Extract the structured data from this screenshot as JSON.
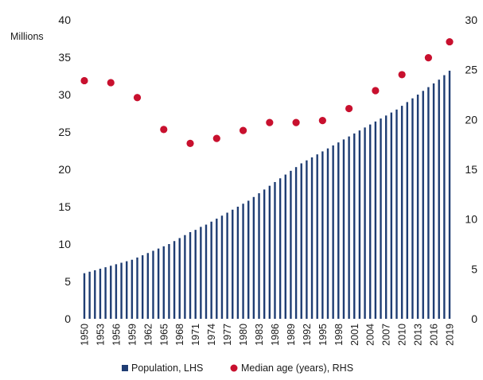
{
  "chart_data": {
    "type": "bar",
    "left_unit_label": "Millions",
    "x_start": 1950,
    "x_end": 2019,
    "x_tick_labels": [
      "1950",
      "1953",
      "1956",
      "1959",
      "1962",
      "1965",
      "1968",
      "1971",
      "1974",
      "1977",
      "1980",
      "1983",
      "1986",
      "1989",
      "1992",
      "1995",
      "1998",
      "2001",
      "2004",
      "2007",
      "2010",
      "2013",
      "2016",
      "2019"
    ],
    "left_axis": {
      "ylim": [
        0,
        40
      ],
      "ticks": [
        0,
        5,
        10,
        15,
        20,
        25,
        30,
        35,
        40
      ]
    },
    "right_axis": {
      "ylim": [
        0,
        30
      ],
      "ticks": [
        0,
        5,
        10,
        15,
        20,
        25,
        30
      ]
    },
    "series": [
      {
        "name": "Population, LHS",
        "type": "bar",
        "axis": "left",
        "color": "#1f3d73",
        "values": [
          6.1,
          6.3,
          6.5,
          6.7,
          6.9,
          7.1,
          7.3,
          7.5,
          7.7,
          7.9,
          8.2,
          8.5,
          8.8,
          9.1,
          9.4,
          9.7,
          10.0,
          10.4,
          10.8,
          11.2,
          11.6,
          11.9,
          12.3,
          12.6,
          13.0,
          13.4,
          13.8,
          14.2,
          14.6,
          15.0,
          15.4,
          15.8,
          16.3,
          16.8,
          17.3,
          17.8,
          18.3,
          18.8,
          19.3,
          19.8,
          20.3,
          20.8,
          21.2,
          21.6,
          22.0,
          22.4,
          22.8,
          23.2,
          23.6,
          24.0,
          24.4,
          24.8,
          25.2,
          25.6,
          26.0,
          26.4,
          26.8,
          27.2,
          27.6,
          28.0,
          28.5,
          29.0,
          29.5,
          30.0,
          30.5,
          31.0,
          31.5,
          32.0,
          32.6,
          33.2
        ]
      },
      {
        "name": "Median age (years), RHS",
        "type": "scatter",
        "axis": "right",
        "color": "#c8102e",
        "x": [
          1950,
          1955,
          1960,
          1965,
          1970,
          1975,
          1980,
          1985,
          1990,
          1995,
          2000,
          2005,
          2010,
          2015,
          2019
        ],
        "values": [
          23.9,
          23.7,
          22.2,
          19.0,
          17.6,
          18.1,
          18.9,
          19.7,
          19.7,
          19.9,
          21.1,
          22.9,
          24.5,
          26.2,
          27.8
        ]
      }
    ]
  }
}
